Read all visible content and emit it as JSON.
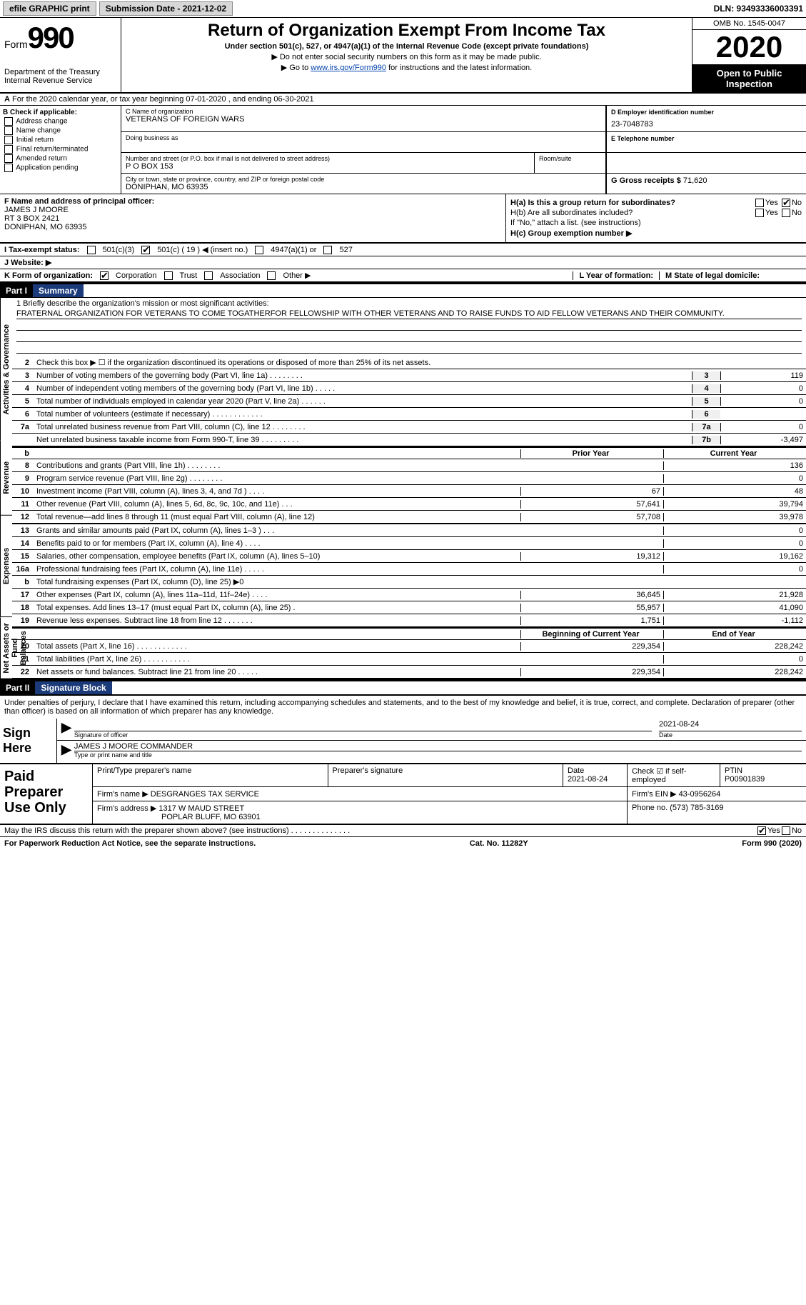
{
  "topbar": {
    "efile": "efile GRAPHIC print",
    "submission_label": "Submission Date - 2021-12-02",
    "dln": "DLN: 93493336003391"
  },
  "header": {
    "form_label": "Form",
    "form_number": "990",
    "dept": "Department of the Treasury",
    "irs": "Internal Revenue Service",
    "title": "Return of Organization Exempt From Income Tax",
    "subtitle": "Under section 501(c), 527, or 4947(a)(1) of the Internal Revenue Code (except private foundations)",
    "note1": "▶ Do not enter social security numbers on this form as it may be made public.",
    "note2_prefix": "▶ Go to ",
    "note2_link": "www.irs.gov/Form990",
    "note2_suffix": " for instructions and the latest information.",
    "omb": "OMB No. 1545-0047",
    "year": "2020",
    "open": "Open to Public Inspection",
    "period": "For the 2020 calendar year, or tax year beginning 07-01-2020   , and ending 06-30-2021"
  },
  "boxB": {
    "header": "B Check if applicable:",
    "items": [
      "Address change",
      "Name change",
      "Initial return",
      "Final return/terminated",
      "Amended return",
      "Application pending"
    ]
  },
  "boxC": {
    "c_label": "C Name of organization",
    "org_name": "VETERANS OF FOREIGN WARS",
    "dba_label": "Doing business as",
    "addr_label": "Number and street (or P.O. box if mail is not delivered to street address)",
    "room_label": "Room/suite",
    "addr": "P O BOX 153",
    "city_label": "City or town, state or province, country, and ZIP or foreign postal code",
    "city": "DONIPHAN, MO  63935"
  },
  "boxD": {
    "label": "D Employer identification number",
    "value": "23-7048783"
  },
  "boxE": {
    "label": "E Telephone number",
    "value": ""
  },
  "boxG": {
    "label": "G Gross receipts $",
    "value": "71,620"
  },
  "boxF": {
    "label": "F Name and address of principal officer:",
    "name": "JAMES J MOORE",
    "addr1": "RT 3 BOX 2421",
    "addr2": "DONIPHAN, MO  63935"
  },
  "boxH": {
    "ha": "H(a)  Is this a group return for subordinates?",
    "hb": "H(b)  Are all subordinates included?",
    "hb_note": "If \"No,\" attach a list. (see instructions)",
    "hc": "H(c)  Group exemption number ▶",
    "yes": "Yes",
    "no": "No"
  },
  "boxI": {
    "label": "I   Tax-exempt status:",
    "c3": "501(c)(3)",
    "c": "501(c) ( 19 ) ◀ (insert no.)",
    "a1": "4947(a)(1) or",
    "s527": "527"
  },
  "boxJ": "J   Website: ▶",
  "boxK": {
    "label": "K Form of organization:",
    "corp": "Corporation",
    "trust": "Trust",
    "assoc": "Association",
    "other": "Other ▶"
  },
  "boxL": "L Year of formation:",
  "boxM": "M State of legal domicile:",
  "partI": {
    "num": "Part I",
    "title": "Summary"
  },
  "mission": {
    "label": "1   Briefly describe the organization's mission or most significant activities:",
    "text": "FRATERNAL ORGANIZATION FOR VETERANS TO COME TOGATHERFOR FELLOWSHIP WITH OTHER VETERANS AND TO RAISE FUNDS TO AID FELLOW VETERANS AND THEIR COMMUNITY."
  },
  "line2": "Check this box ▶ ☐  if the organization discontinued its operations or disposed of more than 25% of its net assets.",
  "gov_lines": [
    {
      "n": "3",
      "d": "Number of voting members of the governing body (Part VI, line 1a)   .   .   .   .   .   .   .   .",
      "k": "3",
      "v": "119"
    },
    {
      "n": "4",
      "d": "Number of independent voting members of the governing body (Part VI, line 1b)   .   .   .   .   .",
      "k": "4",
      "v": "0"
    },
    {
      "n": "5",
      "d": "Total number of individuals employed in calendar year 2020 (Part V, line 2a)   .   .   .   .   .   .",
      "k": "5",
      "v": "0"
    },
    {
      "n": "6",
      "d": "Total number of volunteers (estimate if necessary)   .   .   .   .   .   .   .   .   .   .   .   .",
      "k": "6",
      "v": ""
    },
    {
      "n": "7a",
      "d": "Total unrelated business revenue from Part VIII, column (C), line 12   .   .   .   .   .   .   .   .",
      "k": "7a",
      "v": "0"
    },
    {
      "n": "",
      "d": "Net unrelated business taxable income from Form 990-T, line 39   .   .   .   .   .   .   .   .   .",
      "k": "7b",
      "v": "-3,497"
    }
  ],
  "py_cy_header": {
    "py": "Prior Year",
    "cy": "Current Year"
  },
  "revenue_lines": [
    {
      "n": "8",
      "d": "Contributions and grants (Part VIII, line 1h)   .   .   .   .   .   .   .   .",
      "py": "",
      "cy": "136"
    },
    {
      "n": "9",
      "d": "Program service revenue (Part VIII, line 2g)   .   .   .   .   .   .   .   .",
      "py": "",
      "cy": "0"
    },
    {
      "n": "10",
      "d": "Investment income (Part VIII, column (A), lines 3, 4, and 7d )   .   .   .   .",
      "py": "67",
      "cy": "48"
    },
    {
      "n": "11",
      "d": "Other revenue (Part VIII, column (A), lines 5, 6d, 8c, 9c, 10c, and 11e)   .   .   .",
      "py": "57,641",
      "cy": "39,794"
    },
    {
      "n": "12",
      "d": "Total revenue—add lines 8 through 11 (must equal Part VIII, column (A), line 12)",
      "py": "57,708",
      "cy": "39,978"
    }
  ],
  "expense_lines": [
    {
      "n": "13",
      "d": "Grants and similar amounts paid (Part IX, column (A), lines 1–3 )   .   .   .",
      "py": "",
      "cy": "0"
    },
    {
      "n": "14",
      "d": "Benefits paid to or for members (Part IX, column (A), line 4)   .   .   .   .",
      "py": "",
      "cy": "0"
    },
    {
      "n": "15",
      "d": "Salaries, other compensation, employee benefits (Part IX, column (A), lines 5–10)",
      "py": "19,312",
      "cy": "19,162"
    },
    {
      "n": "16a",
      "d": "Professional fundraising fees (Part IX, column (A), line 11e)   .   .   .   .   .",
      "py": "",
      "cy": "0"
    },
    {
      "n": "b",
      "d": "Total fundraising expenses (Part IX, column (D), line 25) ▶0",
      "py": "GREY",
      "cy": "GREY"
    },
    {
      "n": "17",
      "d": "Other expenses (Part IX, column (A), lines 11a–11d, 11f–24e)   .   .   .   .",
      "py": "36,645",
      "cy": "21,928"
    },
    {
      "n": "18",
      "d": "Total expenses. Add lines 13–17 (must equal Part IX, column (A), line 25)   .",
      "py": "55,957",
      "cy": "41,090"
    },
    {
      "n": "19",
      "d": "Revenue less expenses. Subtract line 18 from line 12   .   .   .   .   .   .   .",
      "py": "1,751",
      "cy": "-1,112"
    }
  ],
  "na_header": {
    "py": "Beginning of Current Year",
    "cy": "End of Year"
  },
  "na_lines": [
    {
      "n": "20",
      "d": "Total assets (Part X, line 16)   .   .   .   .   .   .   .   .   .   .   .   .",
      "py": "229,354",
      "cy": "228,242"
    },
    {
      "n": "21",
      "d": "Total liabilities (Part X, line 26)   .   .   .   .   .   .   .   .   .   .   .",
      "py": "",
      "cy": "0"
    },
    {
      "n": "22",
      "d": "Net assets or fund balances. Subtract line 21 from line 20   .   .   .   .   .",
      "py": "229,354",
      "cy": "228,242"
    }
  ],
  "partII": {
    "num": "Part II",
    "title": "Signature Block"
  },
  "sig_decl": "Under penalties of perjury, I declare that I have examined this return, including accompanying schedules and statements, and to the best of my knowledge and belief, it is true, correct, and complete. Declaration of preparer (other than officer) is based on all information of which preparer has any knowledge.",
  "sign_here": "Sign Here",
  "sig_officer": "Signature of officer",
  "sig_date": "Date",
  "sig_date_val": "2021-08-24",
  "sig_name": "JAMES J MOORE COMMANDER",
  "sig_type": "Type or print name and title",
  "paid_prep": "Paid Preparer Use Only",
  "prep": {
    "h_name": "Print/Type preparer's name",
    "h_sig": "Preparer's signature",
    "h_date": "Date",
    "date_val": "2021-08-24",
    "h_check": "Check ☑ if self-employed",
    "h_ptin": "PTIN",
    "ptin_val": "P00901839",
    "firm_name_lbl": "Firm's name    ▶",
    "firm_name": "DESGRANGES TAX SERVICE",
    "firm_ein_lbl": "Firm's EIN ▶",
    "firm_ein": "43-0956264",
    "firm_addr_lbl": "Firm's address ▶",
    "firm_addr1": "1317 W MAUD STREET",
    "firm_addr2": "POPLAR BLUFF, MO  63901",
    "phone_lbl": "Phone no.",
    "phone": "(573) 785-3169"
  },
  "discuss": "May the IRS discuss this return with the preparer shown above? (see instructions)   .   .   .   .   .   .   .   .   .   .   .   .   .   .",
  "discuss_yes": "Yes",
  "discuss_no": "No",
  "footer": {
    "pra": "For Paperwork Reduction Act Notice, see the separate instructions.",
    "cat": "Cat. No. 11282Y",
    "form": "Form 990 (2020)"
  },
  "vtabs": {
    "gov": "Activities & Governance",
    "rev": "Revenue",
    "exp": "Expenses",
    "na": "Net Assets or Fund Balances"
  },
  "b_letter": "b"
}
